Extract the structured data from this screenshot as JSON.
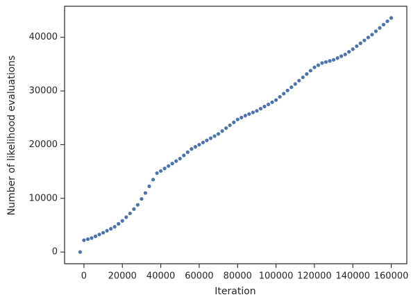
{
  "chart_data": {
    "type": "scatter",
    "xlabel": "Iteration",
    "ylabel": "Number of likelihood evaluations",
    "xlim": [
      -10100,
      168100
    ],
    "ylim": [
      -2180,
      45780
    ],
    "xticks": [
      0,
      20000,
      40000,
      60000,
      80000,
      100000,
      120000,
      140000,
      160000
    ],
    "yticks": [
      0,
      10000,
      20000,
      30000,
      40000
    ],
    "grid": false,
    "series": [
      {
        "color": "#4c72b0",
        "x": [
          -2000,
          0,
          2000,
          4000,
          6000,
          8000,
          10000,
          12000,
          14000,
          16000,
          18000,
          20000,
          22000,
          24000,
          26000,
          28000,
          30000,
          32000,
          34000,
          36000,
          38000,
          40000,
          42000,
          44000,
          46000,
          48000,
          50000,
          52000,
          54000,
          56000,
          58000,
          60000,
          62000,
          64000,
          66000,
          68000,
          70000,
          72000,
          74000,
          76000,
          78000,
          80000,
          82000,
          84000,
          86000,
          88000,
          90000,
          92000,
          94000,
          96000,
          98000,
          100000,
          102000,
          104000,
          106000,
          108000,
          110000,
          112000,
          114000,
          116000,
          118000,
          120000,
          122000,
          124000,
          126000,
          128000,
          130000,
          132000,
          134000,
          136000,
          138000,
          140000,
          142000,
          144000,
          146000,
          148000,
          150000,
          152000,
          154000,
          156000,
          158000,
          160000
        ],
        "values": [
          0,
          2200,
          2400,
          2600,
          2930,
          3270,
          3600,
          3970,
          4330,
          4700,
          5250,
          5800,
          6500,
          7200,
          8000,
          8800,
          9900,
          11000,
          12250,
          13500,
          14700,
          15100,
          15560,
          16020,
          16480,
          16940,
          17400,
          18000,
          18600,
          19200,
          19600,
          20000,
          20400,
          20800,
          21200,
          21600,
          22000,
          22540,
          23080,
          23620,
          24160,
          24700,
          25050,
          25400,
          25700,
          26000,
          26300,
          26700,
          27100,
          27500,
          27900,
          28300,
          28900,
          29500,
          30100,
          30700,
          31300,
          31920,
          32540,
          33160,
          33780,
          34400,
          34800,
          35200,
          35400,
          35600,
          35800,
          36130,
          36470,
          36800,
          37300,
          37800,
          38340,
          38880,
          39420,
          39960,
          40500,
          41120,
          41740,
          42360,
          42980,
          43600
        ]
      }
    ]
  }
}
